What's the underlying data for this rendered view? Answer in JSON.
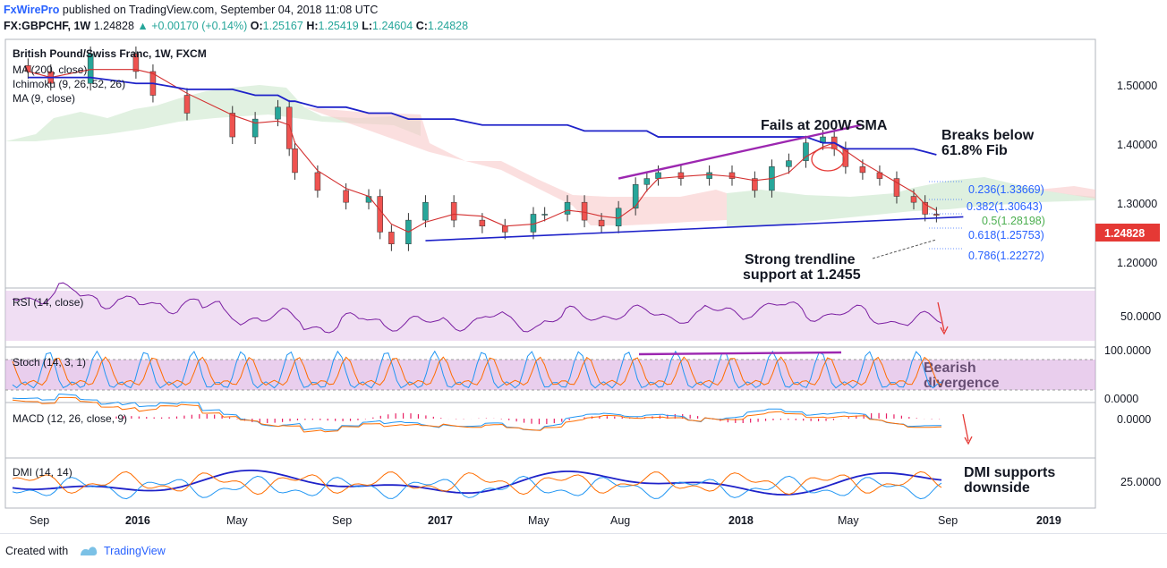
{
  "header": {
    "brand": "FxWirePro",
    "published": "published on TradingView.com, September 04, 2018 11:08 UTC",
    "symbol": "FX:GBPCHF, 1W",
    "last": "1.24828",
    "change": "+0.00170 (+0.14%)",
    "o_label": "O:",
    "o": "1.25167",
    "h_label": "H:",
    "h": "1.25419",
    "l_label": "L:",
    "l": "1.24604",
    "c_label": "C:",
    "c": "1.24828"
  },
  "legend": {
    "title": "British Pound/Swiss Franc, 1W, FXCM",
    "ma": "MA (200, close)",
    "ichimoku": "Ichimoku (9, 26, 52, 26)",
    "misc": "MA (9, close)"
  },
  "annotations": {
    "fails": "Fails at 200W SMA",
    "breaks_1": "Breaks below",
    "breaks_2": "61.8% Fib",
    "support_1": "Strong trendline",
    "support_2": "support at 1.2455",
    "bearish_1": "Bearish",
    "bearish_2": "divergence",
    "dmi_1": "DMI supports",
    "dmi_2": "downside"
  },
  "fib": [
    {
      "label": "0.236(1.33669)",
      "value": 1.33669,
      "color": "#2962ff"
    },
    {
      "label": "0.382(1.30643)",
      "value": 1.30643,
      "color": "#2962ff"
    },
    {
      "label": "0.5(1.28198)",
      "value": 1.28198,
      "color": "#4caf50"
    },
    {
      "label": "0.618(1.25753)",
      "value": 1.25753,
      "color": "#2962ff"
    },
    {
      "label": "0.786(1.22272)",
      "value": 1.22272,
      "color": "#2962ff"
    }
  ],
  "panes": {
    "rsi": {
      "label": "RSI (14, close)",
      "tick": "50.0000"
    },
    "stoch": {
      "label": "Stoch (14, 3, 1)",
      "tick_top": "100.0000",
      "tick_bottom": "0.0000"
    },
    "macd": {
      "label": "MACD (12, 26, close, 9)",
      "tick": "0.0000"
    },
    "dmi": {
      "label": "DMI (14, 14)",
      "tick": "25.0000"
    }
  },
  "price_axis": {
    "ticks": [
      "1.50000",
      "1.40000",
      "1.30000",
      "1.20000"
    ],
    "last_label": "1.24828"
  },
  "time_axis": [
    "Sep",
    "2016",
    "May",
    "Sep",
    "2017",
    "May",
    "Aug",
    "2018",
    "May",
    "Sep",
    "2019"
  ],
  "footer": {
    "created": "Created with",
    "tv": "TradingView"
  },
  "colors": {
    "up": "#26a69a",
    "down": "#ef5350",
    "sma200": "#1e22c9",
    "ma_red": "#d32f2f",
    "trend": "#9c27b0",
    "annot_arrow": "#e53935"
  },
  "chart_data": {
    "type": "candlestick",
    "title": "British Pound/Swiss Franc, 1W, FXCM",
    "y_range": [
      1.17,
      1.57
    ],
    "x": [
      "2015-08-03",
      "2015-08-31",
      "2015-10-19",
      "2015-12-14",
      "2016-01-04",
      "2016-02-15",
      "2016-04-11",
      "2016-05-09",
      "2016-06-06",
      "2016-06-20",
      "2016-06-27",
      "2016-07-25",
      "2016-08-29",
      "2016-09-26",
      "2016-10-10",
      "2016-10-24",
      "2016-11-14",
      "2016-12-05",
      "2017-01-09",
      "2017-02-13",
      "2017-03-13",
      "2017-04-17",
      "2017-05-01",
      "2017-05-29",
      "2017-06-19",
      "2017-07-10",
      "2017-07-31",
      "2017-08-21",
      "2017-09-04",
      "2017-09-18",
      "2017-10-16",
      "2017-11-20",
      "2017-12-18",
      "2018-01-15",
      "2018-02-05",
      "2018-02-26",
      "2018-03-19",
      "2018-04-09",
      "2018-04-23",
      "2018-05-07",
      "2018-05-28",
      "2018-06-18",
      "2018-07-09",
      "2018-07-30",
      "2018-08-13",
      "2018-08-27"
    ],
    "close": [
      1.49,
      1.47,
      1.52,
      1.49,
      1.45,
      1.42,
      1.38,
      1.41,
      1.43,
      1.36,
      1.32,
      1.29,
      1.27,
      1.28,
      1.22,
      1.2,
      1.24,
      1.27,
      1.24,
      1.23,
      1.22,
      1.25,
      1.25,
      1.27,
      1.24,
      1.23,
      1.26,
      1.3,
      1.31,
      1.32,
      1.31,
      1.32,
      1.31,
      1.29,
      1.33,
      1.34,
      1.37,
      1.38,
      1.36,
      1.33,
      1.32,
      1.31,
      1.28,
      1.27,
      1.25,
      1.24828
    ],
    "series": [
      {
        "name": "MA (200, close)",
        "values": [
          1.48,
          1.48,
          1.48,
          1.47,
          1.47,
          1.46,
          1.46,
          1.45,
          1.45,
          1.44,
          1.44,
          1.43,
          1.43,
          1.42,
          1.42,
          1.42,
          1.41,
          1.41,
          1.41,
          1.4,
          1.4,
          1.4,
          1.4,
          1.4,
          1.39,
          1.39,
          1.39,
          1.39,
          1.39,
          1.38,
          1.38,
          1.38,
          1.38,
          1.38,
          1.38,
          1.38,
          1.38,
          1.37,
          1.37,
          1.36,
          1.36,
          1.36,
          1.36,
          1.36,
          1.355,
          1.35
        ]
      }
    ],
    "trendlines": [
      {
        "name": "support",
        "x": [
          "2016-12-05",
          "2018-08-27"
        ],
        "y": [
          1.2055,
          1.2455
        ]
      },
      {
        "name": "resistance",
        "x": [
          "2017-07-31",
          "2018-04-23"
        ],
        "y": [
          1.31,
          1.4
        ]
      }
    ],
    "rsi_range": [
      0,
      100
    ],
    "stoch_range": [
      0,
      100
    ]
  }
}
